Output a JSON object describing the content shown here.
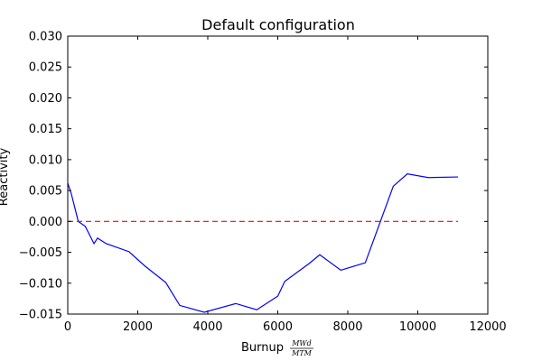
{
  "chart_data": {
    "type": "line",
    "title": "Default configuration",
    "xlabel": "Burnup",
    "xlabel_unit_numerator": "MWd",
    "xlabel_unit_denominator": "MTM",
    "ylabel": "Reactivity",
    "xlim": [
      0,
      12000
    ],
    "ylim": [
      -0.015,
      0.03
    ],
    "grid": false,
    "x_ticks": [
      0,
      2000,
      4000,
      6000,
      8000,
      10000,
      12000
    ],
    "y_ticks": [
      -0.015,
      -0.01,
      -0.005,
      0.0,
      0.005,
      0.01,
      0.015,
      0.02,
      0.025,
      0.03
    ],
    "x_tick_labels": [
      "0",
      "2000",
      "4000",
      "6000",
      "8000",
      "10000",
      "12000"
    ],
    "y_tick_labels": [
      "−0.015",
      "−0.010",
      "−0.005",
      "0.000",
      "0.005",
      "0.010",
      "0.015",
      "0.020",
      "0.025",
      "0.030"
    ],
    "series": [
      {
        "color": "#0000ff",
        "style": "solid",
        "x": [
          0,
          100,
          300,
          500,
          750,
          850,
          1100,
          1750,
          2200,
          2800,
          3200,
          3900,
          4800,
          5400,
          6000,
          6200,
          6900,
          7200,
          7800,
          8500,
          9300,
          9700,
          10300,
          11150
        ],
        "y": [
          0.0062,
          0.0045,
          0.0,
          -0.0008,
          -0.0036,
          -0.0027,
          -0.0036,
          -0.0049,
          -0.0072,
          -0.0099,
          -0.0136,
          -0.0147,
          -0.0133,
          -0.0143,
          -0.0121,
          -0.0097,
          -0.0068,
          -0.0054,
          -0.0079,
          -0.0067,
          0.0057,
          0.0077,
          0.0071,
          0.0072
        ]
      },
      {
        "color": "#ff0000",
        "style": "dashed",
        "x": [
          0,
          11150
        ],
        "y": [
          0.0,
          0.0
        ]
      }
    ]
  }
}
